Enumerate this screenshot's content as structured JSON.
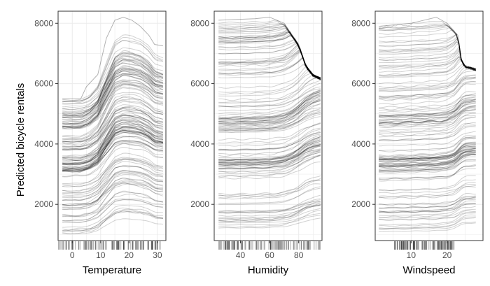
{
  "figure": {
    "ylabel": "Predicted bicycle rentals"
  },
  "chart_data": [
    {
      "type": "line",
      "title": "",
      "xlabel": "Temperature",
      "ylabel": "Predicted bicycle rentals",
      "xlim": [
        -5,
        33
      ],
      "ylim": [
        800,
        8400
      ],
      "xticks": [
        0,
        10,
        20,
        30
      ],
      "yticks": [
        2000,
        4000,
        6000,
        8000
      ],
      "grid": true,
      "legend": "none",
      "ice_curves": {
        "count": 150,
        "base_range": [
          1000,
          5500
        ],
        "shape_x": [
          -3.5,
          -1,
          3,
          6,
          9,
          12,
          15,
          18,
          21,
          24,
          27,
          29,
          32
        ],
        "shape_value": [
          0,
          0,
          0,
          150,
          500,
          1300,
          2100,
          2300,
          2250,
          2150,
          1900,
          1600,
          1500
        ],
        "shape_peak_typical": 1150,
        "upper_envelope": [
          [
            -3.5,
            5500
          ],
          [
            3,
            5500
          ],
          [
            5,
            5900
          ],
          [
            9,
            6300
          ],
          [
            12,
            7500
          ],
          [
            15,
            8100
          ],
          [
            18,
            8200
          ],
          [
            21,
            8100
          ],
          [
            24,
            7900
          ],
          [
            27,
            7600
          ],
          [
            29,
            7300
          ],
          [
            32,
            7250
          ]
        ]
      },
      "rug": {
        "min": -5,
        "max": 32
      }
    },
    {
      "type": "line",
      "title": "",
      "xlabel": "Humidity",
      "ylabel": "",
      "xlim": [
        22,
        96
      ],
      "ylim": [
        800,
        8400
      ],
      "xticks": [
        40,
        60,
        80
      ],
      "yticks": [
        2000,
        4000,
        6000,
        8000
      ],
      "grid": true,
      "legend": "none",
      "ice_curves": {
        "count": 150,
        "base_range": [
          1200,
          8100
        ],
        "shape_x": [
          25,
          35,
          45,
          55,
          62,
          70,
          75,
          80,
          85,
          90,
          95
        ],
        "shape_value": [
          0,
          0,
          -20,
          -40,
          -80,
          -200,
          -400,
          -700,
          -1100,
          -1350,
          -1500
        ],
        "shape_peak_typical": -700,
        "upper_envelope": [
          [
            25,
            8100
          ],
          [
            50,
            8150
          ],
          [
            60,
            8200
          ],
          [
            70,
            8000
          ],
          [
            80,
            7300
          ],
          [
            85,
            6600
          ],
          [
            90,
            6300
          ],
          [
            95,
            6200
          ]
        ]
      },
      "rug": {
        "min": 25,
        "max": 95
      }
    },
    {
      "type": "line",
      "title": "",
      "xlabel": "Windspeed",
      "ylabel": "",
      "xlim": [
        0,
        30
      ],
      "ylim": [
        800,
        8400
      ],
      "xticks": [
        10,
        20
      ],
      "yticks": [
        2000,
        4000,
        6000,
        8000
      ],
      "grid": true,
      "legend": "none",
      "ice_curves": {
        "count": 150,
        "base_range": [
          1100,
          8000
        ],
        "shape_x": [
          1,
          5,
          10,
          15,
          18,
          20,
          22,
          24,
          25,
          28
        ],
        "shape_value": [
          0,
          0,
          -30,
          -60,
          -80,
          -120,
          -250,
          -550,
          -650,
          -700
        ],
        "shape_peak_typical": -500,
        "upper_envelope": [
          [
            1,
            7900
          ],
          [
            10,
            8000
          ],
          [
            17,
            8200
          ],
          [
            20,
            8000
          ],
          [
            23,
            7600
          ],
          [
            24,
            6800
          ],
          [
            25,
            6600
          ],
          [
            28,
            6500
          ]
        ]
      },
      "rug": {
        "min": 1,
        "max": 29
      }
    }
  ]
}
